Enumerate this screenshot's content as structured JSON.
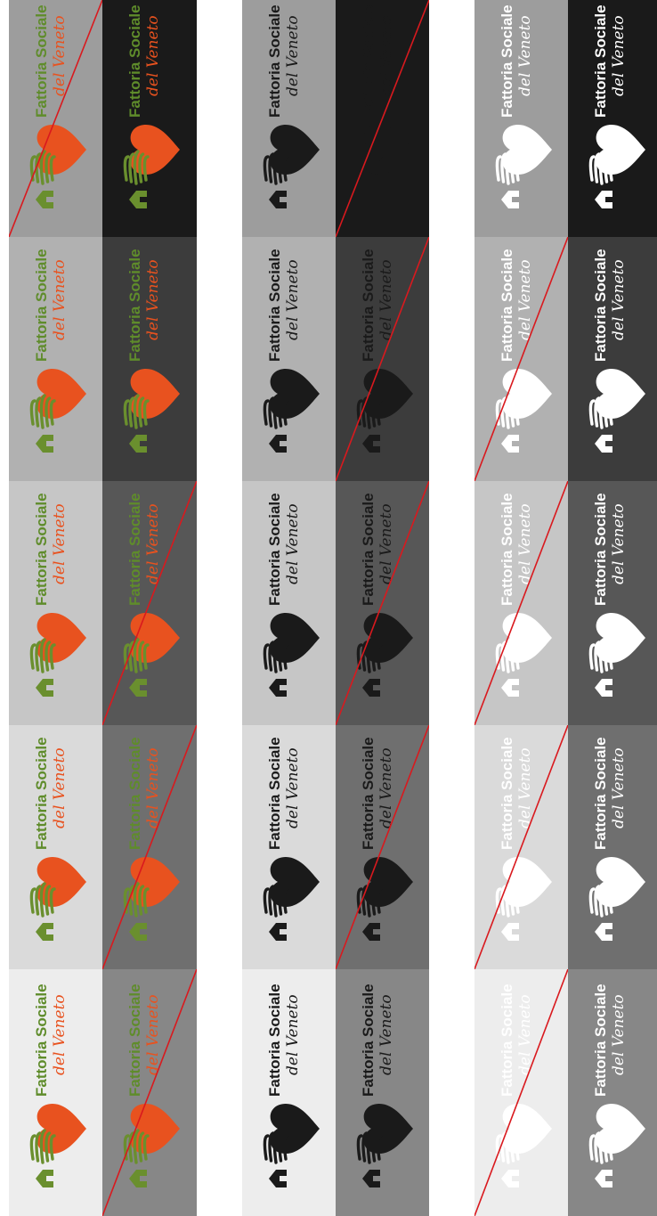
{
  "logo": {
    "line1": "Fattoria Sociale",
    "line2": "del Veneto"
  },
  "colors": {
    "heart_orange": "#e8521f",
    "stripes_green": "#6a8f2e",
    "text_green": "#5f8c2b",
    "text_orange": "#e8521f",
    "black": "#1a1a1a",
    "white": "#ffffff",
    "strike_line": "#d9191e"
  },
  "sections": [
    {
      "name": "color-version",
      "rows": [
        {
          "variant": "color",
          "backgrounds": [
            "#9d9d9d",
            "#1a1a1a"
          ],
          "struck": [
            true,
            false
          ]
        },
        {
          "variant": "color",
          "backgrounds": [
            "#b1b1b1",
            "#3c3c3c"
          ],
          "struck": [
            false,
            false
          ]
        },
        {
          "variant": "color",
          "backgrounds": [
            "#c6c6c6",
            "#575757"
          ],
          "struck": [
            false,
            true
          ]
        },
        {
          "variant": "color",
          "backgrounds": [
            "#dadada",
            "#6f6f6f"
          ],
          "struck": [
            false,
            true
          ]
        },
        {
          "variant": "color",
          "backgrounds": [
            "#ededed",
            "#878787"
          ],
          "struck": [
            false,
            true
          ]
        }
      ]
    },
    {
      "name": "black-version",
      "rows": [
        {
          "variant": "black",
          "backgrounds": [
            "#9d9d9d",
            "#1a1a1a"
          ],
          "struck": [
            false,
            true
          ]
        },
        {
          "variant": "black",
          "backgrounds": [
            "#b1b1b1",
            "#3c3c3c"
          ],
          "struck": [
            false,
            true
          ]
        },
        {
          "variant": "black",
          "backgrounds": [
            "#c6c6c6",
            "#575757"
          ],
          "struck": [
            false,
            true
          ]
        },
        {
          "variant": "black",
          "backgrounds": [
            "#dadada",
            "#6f6f6f"
          ],
          "struck": [
            false,
            true
          ]
        },
        {
          "variant": "black",
          "backgrounds": [
            "#ededed",
            "#878787"
          ],
          "struck": [
            false,
            false
          ]
        }
      ]
    },
    {
      "name": "white-version",
      "rows": [
        {
          "variant": "white",
          "backgrounds": [
            "#9d9d9d",
            "#1a1a1a"
          ],
          "struck": [
            false,
            false
          ]
        },
        {
          "variant": "white",
          "backgrounds": [
            "#b1b1b1",
            "#3c3c3c"
          ],
          "struck": [
            true,
            false
          ]
        },
        {
          "variant": "white",
          "backgrounds": [
            "#c6c6c6",
            "#575757"
          ],
          "struck": [
            true,
            false
          ]
        },
        {
          "variant": "white",
          "backgrounds": [
            "#dadada",
            "#6f6f6f"
          ],
          "struck": [
            true,
            false
          ]
        },
        {
          "variant": "white",
          "backgrounds": [
            "#ededed",
            "#878787"
          ],
          "struck": [
            true,
            false
          ]
        }
      ]
    }
  ]
}
